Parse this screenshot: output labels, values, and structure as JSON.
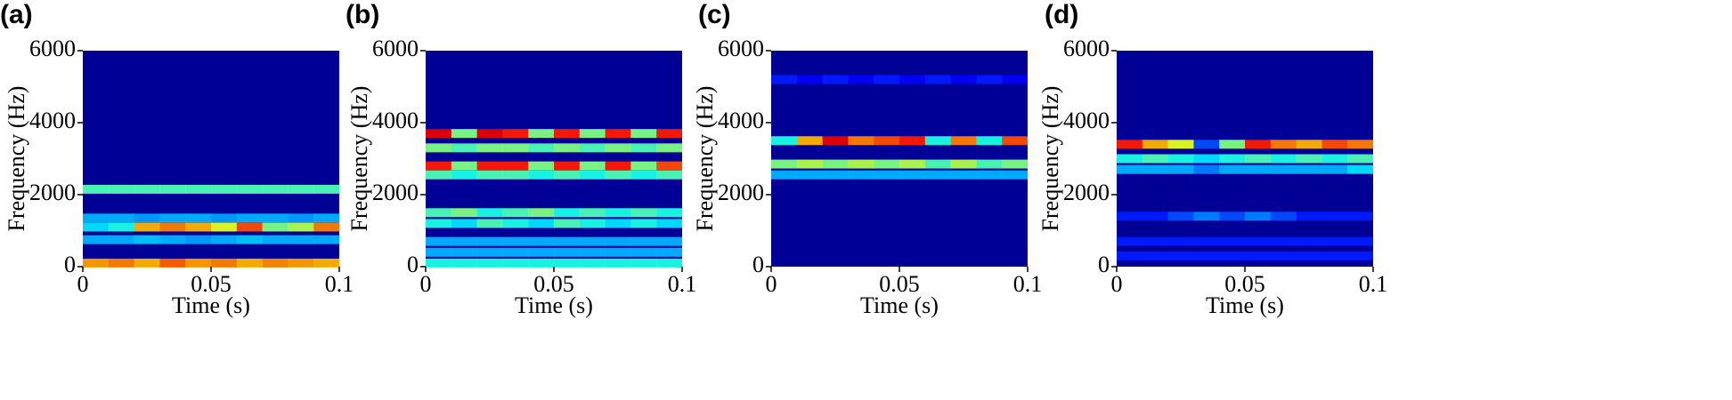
{
  "chart_data": [
    {
      "type": "spectrogram",
      "label": "(a)",
      "xlabel": "Time (s)",
      "ylabel": "Frequency (Hz)",
      "xlim": [
        0,
        0.1
      ],
      "ylim": [
        0,
        6000
      ],
      "xticks": [
        0,
        0.05,
        0.1
      ],
      "yticks": [
        0,
        2000,
        4000,
        6000
      ],
      "x": [
        0,
        0.01,
        0.02,
        0.03,
        0.04,
        0.05,
        0.06,
        0.07,
        0.08,
        0.09
      ],
      "bands": [
        {
          "frequency": 2150,
          "values": [
            0.45,
            0.45,
            0.45,
            0.45,
            0.45,
            0.45,
            0.45,
            0.45,
            0.45,
            0.45
          ]
        },
        {
          "frequency": 1350,
          "values": [
            0.3,
            0.3,
            0.28,
            0.3,
            0.3,
            0.28,
            0.3,
            0.3,
            0.28,
            0.3
          ]
        },
        {
          "frequency": 1100,
          "values": [
            0.35,
            0.4,
            0.7,
            0.75,
            0.7,
            0.6,
            0.8,
            0.5,
            0.55,
            0.75
          ]
        },
        {
          "frequency": 750,
          "values": [
            0.3,
            0.3,
            0.32,
            0.3,
            0.28,
            0.3,
            0.32,
            0.3,
            0.3,
            0.3
          ]
        },
        {
          "frequency": 100,
          "values": [
            0.72,
            0.75,
            0.7,
            0.78,
            0.72,
            0.75,
            0.7,
            0.74,
            0.72,
            0.7
          ]
        }
      ]
    },
    {
      "type": "spectrogram",
      "label": "(b)",
      "xlabel": "Time (s)",
      "ylabel": "Frequency (Hz)",
      "xlim": [
        0,
        0.1
      ],
      "ylim": [
        0,
        6000
      ],
      "xticks": [
        0,
        0.05,
        0.1
      ],
      "yticks": [
        0,
        2000,
        4000,
        6000
      ],
      "x": [
        0,
        0.01,
        0.02,
        0.03,
        0.04,
        0.05,
        0.06,
        0.07,
        0.08,
        0.09
      ],
      "bands": [
        {
          "frequency": 3700,
          "values": [
            0.9,
            0.5,
            0.9,
            0.85,
            0.5,
            0.85,
            0.5,
            0.85,
            0.5,
            0.85
          ]
        },
        {
          "frequency": 3300,
          "values": [
            0.5,
            0.45,
            0.5,
            0.5,
            0.45,
            0.5,
            0.45,
            0.5,
            0.45,
            0.5
          ]
        },
        {
          "frequency": 2800,
          "values": [
            0.85,
            0.5,
            0.85,
            0.85,
            0.5,
            0.85,
            0.5,
            0.85,
            0.5,
            0.8
          ]
        },
        {
          "frequency": 2550,
          "values": [
            0.45,
            0.4,
            0.45,
            0.45,
            0.4,
            0.45,
            0.4,
            0.45,
            0.4,
            0.45
          ]
        },
        {
          "frequency": 1500,
          "values": [
            0.45,
            0.5,
            0.4,
            0.45,
            0.5,
            0.4,
            0.45,
            0.4,
            0.45,
            0.4
          ]
        },
        {
          "frequency": 1200,
          "values": [
            0.4,
            0.35,
            0.45,
            0.4,
            0.35,
            0.45,
            0.4,
            0.35,
            0.4,
            0.35
          ]
        },
        {
          "frequency": 700,
          "values": [
            0.3,
            0.3,
            0.3,
            0.3,
            0.3,
            0.3,
            0.3,
            0.3,
            0.3,
            0.3
          ]
        },
        {
          "frequency": 400,
          "values": [
            0.3,
            0.3,
            0.3,
            0.3,
            0.3,
            0.3,
            0.3,
            0.3,
            0.3,
            0.3
          ]
        },
        {
          "frequency": 100,
          "values": [
            0.4,
            0.4,
            0.4,
            0.4,
            0.4,
            0.4,
            0.4,
            0.4,
            0.4,
            0.4
          ]
        }
      ]
    },
    {
      "type": "spectrogram",
      "label": "(c)",
      "xlabel": "Time (s)",
      "ylabel": "Frequency (Hz)",
      "xlim": [
        0,
        0.1
      ],
      "ylim": [
        0,
        6000
      ],
      "xticks": [
        0,
        0.05,
        0.1
      ],
      "yticks": [
        0,
        2000,
        4000,
        6000
      ],
      "x": [
        0,
        0.01,
        0.02,
        0.03,
        0.04,
        0.05,
        0.06,
        0.07,
        0.08,
        0.09
      ],
      "bands": [
        {
          "frequency": 5200,
          "values": [
            0.15,
            0.12,
            0.15,
            0.12,
            0.15,
            0.12,
            0.15,
            0.12,
            0.15,
            0.12
          ]
        },
        {
          "frequency": 3500,
          "values": [
            0.4,
            0.7,
            0.9,
            0.75,
            0.8,
            0.85,
            0.4,
            0.75,
            0.4,
            0.8
          ]
        },
        {
          "frequency": 2850,
          "values": [
            0.5,
            0.55,
            0.5,
            0.55,
            0.5,
            0.55,
            0.45,
            0.55,
            0.45,
            0.5
          ]
        },
        {
          "frequency": 2550,
          "values": [
            0.3,
            0.3,
            0.3,
            0.3,
            0.3,
            0.3,
            0.3,
            0.3,
            0.3,
            0.3
          ]
        }
      ]
    },
    {
      "type": "spectrogram",
      "label": "(d)",
      "xlabel": "Time (s)",
      "ylabel": "Frequency (Hz)",
      "xlim": [
        0,
        0.1
      ],
      "ylim": [
        0,
        6000
      ],
      "xticks": [
        0,
        0.05,
        0.1
      ],
      "yticks": [
        0,
        2000,
        4000,
        6000
      ],
      "x": [
        0,
        0.01,
        0.02,
        0.03,
        0.04,
        0.05,
        0.06,
        0.07,
        0.08,
        0.09
      ],
      "bands": [
        {
          "frequency": 3400,
          "values": [
            0.85,
            0.7,
            0.6,
            0.2,
            0.5,
            0.85,
            0.75,
            0.7,
            0.8,
            0.75
          ]
        },
        {
          "frequency": 3000,
          "values": [
            0.4,
            0.45,
            0.4,
            0.35,
            0.4,
            0.45,
            0.4,
            0.45,
            0.4,
            0.45
          ]
        },
        {
          "frequency": 2700,
          "values": [
            0.3,
            0.3,
            0.3,
            0.25,
            0.3,
            0.3,
            0.3,
            0.3,
            0.3,
            0.35
          ]
        },
        {
          "frequency": 1400,
          "values": [
            0.15,
            0.15,
            0.2,
            0.25,
            0.2,
            0.25,
            0.2,
            0.15,
            0.15,
            0.15
          ]
        },
        {
          "frequency": 700,
          "values": [
            0.15,
            0.15,
            0.15,
            0.15,
            0.15,
            0.15,
            0.15,
            0.15,
            0.15,
            0.15
          ]
        },
        {
          "frequency": 300,
          "values": [
            0.15,
            0.15,
            0.15,
            0.15,
            0.15,
            0.15,
            0.15,
            0.15,
            0.15,
            0.15
          ]
        }
      ]
    }
  ]
}
